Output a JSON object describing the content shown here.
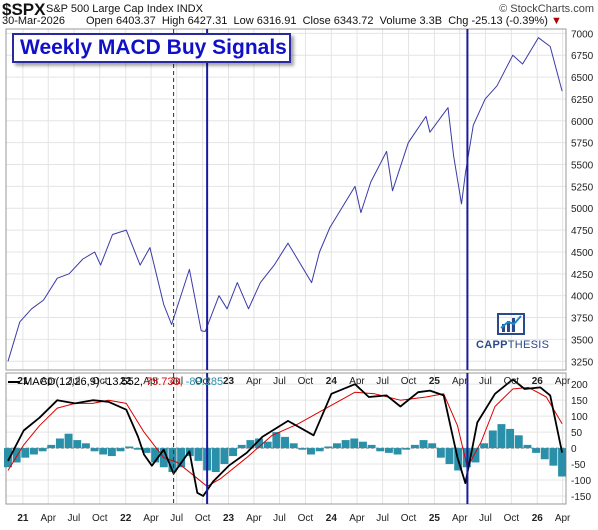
{
  "header": {
    "symbol": "$SPX",
    "name": "S&P 500 Large Cap Index  INDX",
    "brand": "© StockCharts.com",
    "date": "30-Mar-2026",
    "open_label": "Open",
    "open": "6403.37",
    "high_label": "High",
    "high": "6427.31",
    "low_label": "Low",
    "low": "6316.91",
    "close_label": "Close",
    "close": "6343.72",
    "volume_label": "Volume",
    "volume": "3.3B",
    "chg_label": "Chg",
    "chg": "-25.13 (-0.39%)"
  },
  "title": "Weekly MACD Buy Signals",
  "logo": {
    "word1": "CAPP",
    "word2": "THESIS"
  },
  "macd_legend": {
    "label": "MACD(12,26,9)",
    "macd": "-13.552,",
    "signal": "75.733,",
    "hist": "-89.285"
  },
  "colors": {
    "price": "#3a3aa8",
    "macd": "#000000",
    "signal": "#dd0000",
    "hist": "#2a8fa8",
    "signal_line": "#1a1aa0",
    "grid": "#e4e4e4"
  },
  "chart_data": [
    {
      "type": "line",
      "series": [
        {
          "x": [
            "2020-11-09",
            "2020-12-21",
            "2021-02-01",
            "2021-03-15",
            "2021-05-03",
            "2021-06-14",
            "2021-08-02",
            "2021-09-13",
            "2021-10-04",
            "2021-11-15",
            "2022-01-03",
            "2022-02-21",
            "2022-03-28",
            "2022-05-16",
            "2022-06-13",
            "2022-08-15",
            "2022-09-26",
            "2022-10-10",
            "2022-11-28",
            "2022-12-27",
            "2023-02-01",
            "2023-03-13",
            "2023-04-24",
            "2023-06-12",
            "2023-07-31",
            "2023-10-23",
            "2023-11-20",
            "2023-12-27",
            "2024-03-25",
            "2024-04-15",
            "2024-05-20",
            "2024-07-15",
            "2024-08-05",
            "2024-09-30",
            "2024-12-02",
            "2024-12-16",
            "2025-02-18",
            "2025-03-10",
            "2025-04-07",
            "2025-04-21",
            "2025-05-19",
            "2025-06-30",
            "2025-08-11",
            "2025-10-06",
            "2025-11-10",
            "2026-01-05",
            "2026-02-16",
            "2026-03-30"
          ],
          "y": [
            3250,
            3700,
            3850,
            3950,
            4200,
            4250,
            4420,
            4500,
            4350,
            4700,
            4750,
            4350,
            4550,
            3900,
            3670,
            4300,
            3600,
            3590,
            4000,
            3850,
            4150,
            3850,
            4150,
            4350,
            4600,
            4150,
            4500,
            4780,
            5250,
            4950,
            5300,
            5650,
            5200,
            5750,
            6050,
            5870,
            6150,
            5600,
            5050,
            5400,
            5950,
            6250,
            6400,
            6750,
            6650,
            6950,
            6850,
            6340
          ]
        }
      ],
      "yticks": [
        3250,
        3500,
        3750,
        4000,
        4250,
        4500,
        4750,
        5000,
        5250,
        5500,
        5750,
        6000,
        6250,
        6500,
        6750,
        7000
      ],
      "ylim": [
        3150,
        7050
      ],
      "xticks": [
        "21",
        "Apr",
        "Jul",
        "Oct",
        "22",
        "Apr",
        "Jul",
        "Oct",
        "23",
        "Apr",
        "Jul",
        "Oct",
        "24",
        "Apr",
        "Jul",
        "Oct",
        "25",
        "Apr",
        "Jul",
        "Oct",
        "26",
        "Apr"
      ],
      "annotations": {
        "buy_signals": [
          "2022-10-17",
          "2025-04-28"
        ],
        "dashed_marker": "2022-06-20"
      }
    },
    {
      "type": "line",
      "series": [
        {
          "name": "MACD",
          "x": [
            "2020-11-09",
            "2021-01-04",
            "2021-03-01",
            "2021-05-03",
            "2021-07-05",
            "2021-09-06",
            "2021-11-01",
            "2022-01-03",
            "2022-02-14",
            "2022-03-07",
            "2022-04-04",
            "2022-05-16",
            "2022-06-20",
            "2022-08-15",
            "2022-09-12",
            "2022-10-03",
            "2022-11-07",
            "2023-01-02",
            "2023-03-06",
            "2023-05-01",
            "2023-07-31",
            "2023-10-30",
            "2024-01-01",
            "2024-03-25",
            "2024-05-13",
            "2024-07-15",
            "2024-09-02",
            "2024-11-04",
            "2024-12-16",
            "2025-02-03",
            "2025-03-24",
            "2025-04-21",
            "2025-06-02",
            "2025-08-04",
            "2025-10-06",
            "2025-11-17",
            "2026-01-12",
            "2026-02-16",
            "2026-03-30"
          ],
          "y": [
            -40,
            55,
            95,
            150,
            140,
            150,
            145,
            120,
            35,
            -20,
            -55,
            -5,
            -80,
            -10,
            -140,
            -150,
            -105,
            -55,
            -15,
            35,
            85,
            40,
            170,
            200,
            160,
            165,
            130,
            175,
            180,
            165,
            -30,
            -110,
            80,
            170,
            215,
            185,
            190,
            165,
            -14
          ]
        },
        {
          "name": "Signal",
          "x": [
            "2020-11-09",
            "2021-01-04",
            "2021-03-01",
            "2021-05-03",
            "2021-07-05",
            "2021-09-06",
            "2021-11-01",
            "2022-01-03",
            "2022-03-07",
            "2022-05-16",
            "2022-07-04",
            "2022-09-05",
            "2022-10-17",
            "2022-12-05",
            "2023-03-06",
            "2023-06-05",
            "2023-09-04",
            "2023-12-04",
            "2024-03-25",
            "2024-06-03",
            "2024-09-02",
            "2024-12-02",
            "2025-02-03",
            "2025-03-24",
            "2025-04-28",
            "2025-06-16",
            "2025-08-04",
            "2025-10-06",
            "2025-12-01",
            "2026-02-02",
            "2026-03-30"
          ],
          "y": [
            -70,
            10,
            70,
            125,
            140,
            140,
            150,
            140,
            50,
            -30,
            -45,
            -90,
            -120,
            -95,
            -30,
            40,
            75,
            120,
            175,
            170,
            150,
            160,
            170,
            70,
            -60,
            20,
            130,
            185,
            190,
            160,
            76
          ]
        }
      ],
      "histogram": [
        -60,
        -45,
        -30,
        -20,
        -10,
        10,
        30,
        45,
        25,
        15,
        -10,
        -20,
        -25,
        -10,
        5,
        -5,
        -15,
        -45,
        -60,
        -75,
        -60,
        -25,
        -40,
        -70,
        -75,
        -50,
        -25,
        10,
        25,
        30,
        20,
        50,
        35,
        15,
        -5,
        -20,
        -10,
        5,
        15,
        25,
        30,
        20,
        10,
        -10,
        -15,
        -20,
        -5,
        10,
        25,
        15,
        -30,
        -50,
        -70,
        -60,
        -45,
        15,
        55,
        75,
        60,
        40,
        10,
        -15,
        -35,
        -55,
        -89
      ],
      "yticks": [
        -150,
        -100,
        -50,
        0,
        50,
        100,
        150,
        200
      ],
      "ylim": [
        -175,
        235
      ],
      "xticks": [
        "21",
        "Apr",
        "Jul",
        "Oct",
        "22",
        "Apr",
        "Jul",
        "Oct",
        "23",
        "Apr",
        "Jul",
        "Oct",
        "24",
        "Apr",
        "Jul",
        "Oct",
        "25",
        "Apr",
        "Jul",
        "Oct",
        "26",
        "Apr"
      ],
      "grid": true
    }
  ]
}
